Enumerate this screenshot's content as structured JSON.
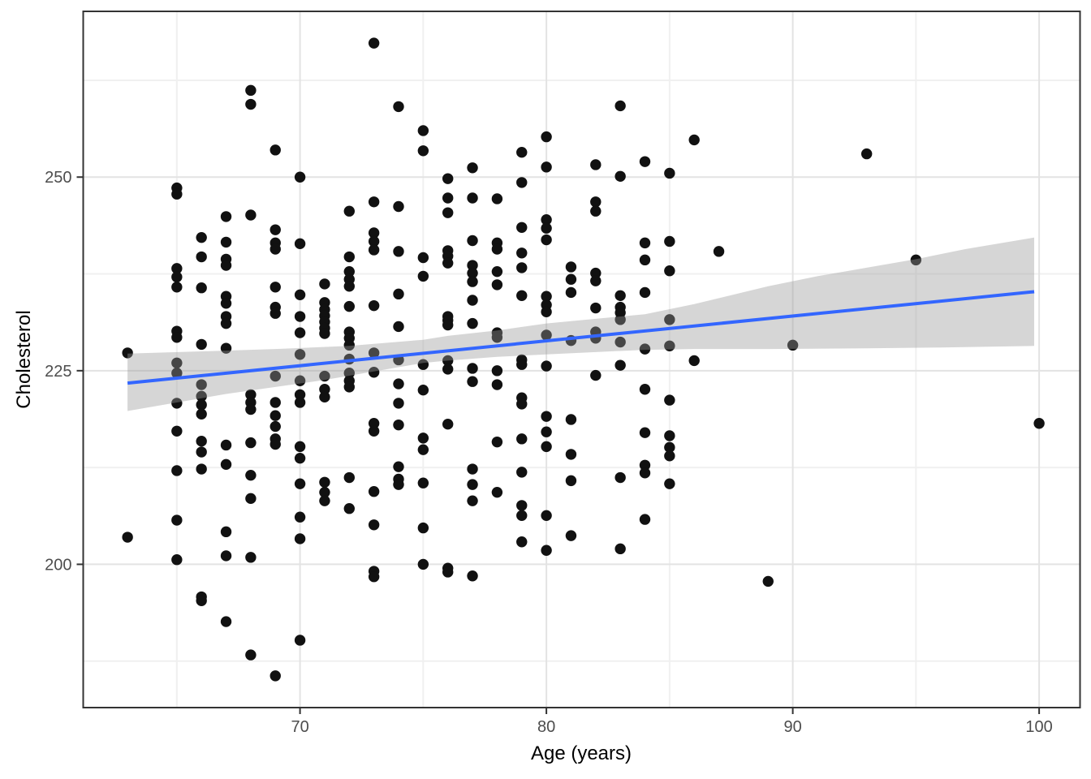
{
  "chart_data": {
    "type": "scatter",
    "title": "",
    "xlabel": "Age (years)",
    "ylabel": "Cholesterol",
    "xlim": [
      61.2,
      101.66
    ],
    "ylim": [
      181.5,
      271.4
    ],
    "x_ticks": [
      70,
      80,
      90,
      100
    ],
    "x_tick_labels": [
      "70",
      "80",
      "90",
      "100"
    ],
    "x_minor_ticks": [
      65,
      75,
      85,
      95
    ],
    "y_ticks": [
      200,
      225,
      250
    ],
    "y_tick_labels": [
      "200",
      "225",
      "250"
    ],
    "y_minor_ticks": [
      187.5,
      212.5,
      237.5,
      262.5
    ],
    "grid": true,
    "legend": "none",
    "style": {
      "panel_bg": "#ffffff",
      "panel_border": "#333333",
      "grid_major": "#e3e3e3",
      "grid_minor": "#f0f0f0",
      "tick_color": "#333333",
      "tick_label_color": "#4d4d4d",
      "tick_label_size": 20,
      "point_color": "#111111",
      "point_radius": 6.7,
      "line_color": "#3366FF",
      "line_width": 4,
      "ribbon_fill": "rgba(153,153,153,0.4)"
    },
    "smooth_line": {
      "x": [
        63,
        99.8
      ],
      "y": [
        223.4,
        235.2
      ]
    },
    "ribbon": {
      "upper": [
        [
          63,
          227.2
        ],
        [
          66,
          227.5
        ],
        [
          69,
          227.8
        ],
        [
          72,
          228.2
        ],
        [
          75,
          229.0
        ],
        [
          76,
          229.5
        ],
        [
          78,
          230.2
        ],
        [
          80,
          231.1
        ],
        [
          82,
          231.7
        ],
        [
          84,
          232.3
        ],
        [
          86,
          233.6
        ],
        [
          89,
          235.9
        ],
        [
          91,
          237.2
        ],
        [
          93,
          238.3
        ],
        [
          95,
          239.4
        ],
        [
          97,
          240.7
        ],
        [
          99.8,
          242.2
        ]
      ],
      "lower": [
        [
          63,
          219.8
        ],
        [
          65,
          220.9
        ],
        [
          67,
          222.0
        ],
        [
          69,
          222.9
        ],
        [
          71,
          223.8
        ],
        [
          73,
          224.9
        ],
        [
          75,
          226.0
        ],
        [
          76,
          226.3
        ],
        [
          78,
          226.8
        ],
        [
          80,
          227.1
        ],
        [
          82,
          227.4
        ],
        [
          84,
          227.7
        ],
        [
          86,
          227.8
        ],
        [
          89,
          227.8
        ],
        [
          93,
          227.9
        ],
        [
          96,
          228.0
        ],
        [
          99.8,
          228.2
        ]
      ]
    },
    "points": [
      [
        63,
        227.3
      ],
      [
        63,
        203.5
      ],
      [
        65,
        248.6
      ],
      [
        65,
        247.8
      ],
      [
        65,
        238.2
      ],
      [
        65,
        237.1
      ],
      [
        65,
        235.8
      ],
      [
        65,
        230.1
      ],
      [
        65,
        229.3
      ],
      [
        65,
        226.0
      ],
      [
        65,
        224.7
      ],
      [
        65,
        220.8
      ],
      [
        65,
        217.2
      ],
      [
        65,
        212.1
      ],
      [
        65,
        205.7
      ],
      [
        65,
        200.6
      ],
      [
        66,
        242.2
      ],
      [
        66,
        239.7
      ],
      [
        66,
        235.7
      ],
      [
        66,
        228.4
      ],
      [
        66,
        223.2
      ],
      [
        66,
        221.7
      ],
      [
        66,
        220.6
      ],
      [
        66,
        219.4
      ],
      [
        66,
        215.9
      ],
      [
        66,
        214.5
      ],
      [
        66,
        212.3
      ],
      [
        66,
        195.8
      ],
      [
        66,
        195.3
      ],
      [
        67,
        244.9
      ],
      [
        67,
        241.6
      ],
      [
        67,
        239.4
      ],
      [
        67,
        238.6
      ],
      [
        67,
        234.6
      ],
      [
        67,
        233.7
      ],
      [
        67,
        232.0
      ],
      [
        67,
        231.1
      ],
      [
        67,
        227.9
      ],
      [
        67,
        215.4
      ],
      [
        67,
        212.9
      ],
      [
        67,
        204.2
      ],
      [
        67,
        201.1
      ],
      [
        67,
        192.6
      ],
      [
        68,
        261.2
      ],
      [
        68,
        259.4
      ],
      [
        68,
        245.1
      ],
      [
        68,
        221.9
      ],
      [
        68,
        220.9
      ],
      [
        68,
        220.0
      ],
      [
        68,
        215.7
      ],
      [
        68,
        211.5
      ],
      [
        68,
        208.5
      ],
      [
        68,
        200.9
      ],
      [
        68,
        188.3
      ],
      [
        69,
        253.5
      ],
      [
        69,
        243.2
      ],
      [
        69,
        241.5
      ],
      [
        69,
        240.7
      ],
      [
        69,
        235.8
      ],
      [
        69,
        233.2
      ],
      [
        69,
        232.4
      ],
      [
        69,
        224.3
      ],
      [
        69,
        220.9
      ],
      [
        69,
        219.2
      ],
      [
        69,
        217.8
      ],
      [
        69,
        216.2
      ],
      [
        69,
        215.5
      ],
      [
        69,
        185.6
      ],
      [
        70,
        250.0
      ],
      [
        70,
        241.4
      ],
      [
        70,
        234.8
      ],
      [
        70,
        232.0
      ],
      [
        70,
        229.9
      ],
      [
        70,
        227.1
      ],
      [
        70,
        223.7
      ],
      [
        70,
        221.9
      ],
      [
        70,
        220.9
      ],
      [
        70,
        215.2
      ],
      [
        70,
        213.7
      ],
      [
        70,
        210.4
      ],
      [
        70,
        206.1
      ],
      [
        70,
        203.3
      ],
      [
        70,
        190.2
      ],
      [
        71,
        236.2
      ],
      [
        71,
        233.8
      ],
      [
        71,
        232.9
      ],
      [
        71,
        232.1
      ],
      [
        71,
        231.3
      ],
      [
        71,
        230.5
      ],
      [
        71,
        229.8
      ],
      [
        71,
        224.3
      ],
      [
        71,
        222.6
      ],
      [
        71,
        221.6
      ],
      [
        71,
        210.6
      ],
      [
        71,
        209.3
      ],
      [
        71,
        208.2
      ],
      [
        72,
        245.6
      ],
      [
        72,
        239.7
      ],
      [
        72,
        237.8
      ],
      [
        72,
        236.8
      ],
      [
        72,
        235.9
      ],
      [
        72,
        233.3
      ],
      [
        72,
        230.0
      ],
      [
        72,
        229.2
      ],
      [
        72,
        228.3
      ],
      [
        72,
        226.5
      ],
      [
        72,
        224.7
      ],
      [
        72,
        223.7
      ],
      [
        72,
        222.9
      ],
      [
        72,
        211.2
      ],
      [
        72,
        207.2
      ],
      [
        73,
        267.3
      ],
      [
        73,
        246.8
      ],
      [
        73,
        242.8
      ],
      [
        73,
        241.7
      ],
      [
        73,
        240.6
      ],
      [
        73,
        233.4
      ],
      [
        73,
        227.3
      ],
      [
        73,
        224.8
      ],
      [
        73,
        218.2
      ],
      [
        73,
        217.2
      ],
      [
        73,
        209.4
      ],
      [
        73,
        205.1
      ],
      [
        73,
        199.1
      ],
      [
        73,
        198.4
      ],
      [
        74,
        259.1
      ],
      [
        74,
        246.2
      ],
      [
        74,
        240.4
      ],
      [
        74,
        234.9
      ],
      [
        74,
        230.7
      ],
      [
        74,
        226.4
      ],
      [
        74,
        223.3
      ],
      [
        74,
        220.8
      ],
      [
        74,
        218.0
      ],
      [
        74,
        212.6
      ],
      [
        74,
        211.0
      ],
      [
        74,
        210.3
      ],
      [
        75,
        256.0
      ],
      [
        75,
        253.4
      ],
      [
        75,
        239.6
      ],
      [
        75,
        237.2
      ],
      [
        75,
        225.8
      ],
      [
        75,
        222.5
      ],
      [
        75,
        216.3
      ],
      [
        75,
        214.8
      ],
      [
        75,
        210.5
      ],
      [
        75,
        204.7
      ],
      [
        75,
        200.0
      ],
      [
        76,
        249.8
      ],
      [
        76,
        247.3
      ],
      [
        76,
        245.4
      ],
      [
        76,
        240.5
      ],
      [
        76,
        239.8
      ],
      [
        76,
        238.9
      ],
      [
        76,
        232.0
      ],
      [
        76,
        231.5
      ],
      [
        76,
        230.9
      ],
      [
        76,
        226.3
      ],
      [
        76,
        225.2
      ],
      [
        76,
        218.1
      ],
      [
        76,
        199.5
      ],
      [
        76,
        199.0
      ],
      [
        77,
        251.2
      ],
      [
        77,
        247.3
      ],
      [
        77,
        241.8
      ],
      [
        77,
        238.6
      ],
      [
        77,
        237.6
      ],
      [
        77,
        236.5
      ],
      [
        77,
        234.1
      ],
      [
        77,
        231.1
      ],
      [
        77,
        225.3
      ],
      [
        77,
        223.6
      ],
      [
        77,
        212.3
      ],
      [
        77,
        210.3
      ],
      [
        77,
        208.2
      ],
      [
        77,
        198.5
      ],
      [
        78,
        247.2
      ],
      [
        78,
        241.5
      ],
      [
        78,
        240.7
      ],
      [
        78,
        237.8
      ],
      [
        78,
        236.1
      ],
      [
        78,
        229.9
      ],
      [
        78,
        229.3
      ],
      [
        78,
        225.0
      ],
      [
        78,
        223.2
      ],
      [
        78,
        215.8
      ],
      [
        78,
        209.3
      ],
      [
        79,
        253.2
      ],
      [
        79,
        249.3
      ],
      [
        79,
        243.5
      ],
      [
        79,
        240.2
      ],
      [
        79,
        238.3
      ],
      [
        79,
        234.7
      ],
      [
        79,
        226.4
      ],
      [
        79,
        225.8
      ],
      [
        79,
        221.5
      ],
      [
        79,
        220.7
      ],
      [
        79,
        216.2
      ],
      [
        79,
        211.9
      ],
      [
        79,
        207.6
      ],
      [
        79,
        206.3
      ],
      [
        79,
        202.9
      ],
      [
        80,
        255.2
      ],
      [
        80,
        251.3
      ],
      [
        80,
        244.5
      ],
      [
        80,
        243.4
      ],
      [
        80,
        241.9
      ],
      [
        80,
        234.6
      ],
      [
        80,
        233.5
      ],
      [
        80,
        232.6
      ],
      [
        80,
        229.6
      ],
      [
        80,
        225.6
      ],
      [
        80,
        219.1
      ],
      [
        80,
        217.1
      ],
      [
        80,
        215.2
      ],
      [
        80,
        206.3
      ],
      [
        80,
        201.8
      ],
      [
        81,
        238.4
      ],
      [
        81,
        236.8
      ],
      [
        81,
        235.1
      ],
      [
        81,
        228.9
      ],
      [
        81,
        218.7
      ],
      [
        81,
        214.2
      ],
      [
        81,
        210.8
      ],
      [
        81,
        203.7
      ],
      [
        82,
        251.6
      ],
      [
        82,
        246.8
      ],
      [
        82,
        245.6
      ],
      [
        82,
        237.6
      ],
      [
        82,
        236.6
      ],
      [
        82,
        233.1
      ],
      [
        82,
        230.0
      ],
      [
        82,
        229.2
      ],
      [
        82,
        224.4
      ],
      [
        83,
        259.2
      ],
      [
        83,
        250.1
      ],
      [
        83,
        234.7
      ],
      [
        83,
        233.2
      ],
      [
        83,
        232.5
      ],
      [
        83,
        231.6
      ],
      [
        83,
        228.7
      ],
      [
        83,
        225.7
      ],
      [
        83,
        211.2
      ],
      [
        83,
        202.0
      ],
      [
        84,
        252.0
      ],
      [
        84,
        241.5
      ],
      [
        84,
        239.3
      ],
      [
        84,
        235.1
      ],
      [
        84,
        227.8
      ],
      [
        84,
        222.6
      ],
      [
        84,
        217.0
      ],
      [
        84,
        212.8
      ],
      [
        84,
        211.8
      ],
      [
        84,
        205.8
      ],
      [
        85,
        250.5
      ],
      [
        85,
        241.7
      ],
      [
        85,
        237.9
      ],
      [
        85,
        231.6
      ],
      [
        85,
        228.2
      ],
      [
        85,
        221.2
      ],
      [
        85,
        216.6
      ],
      [
        85,
        215.1
      ],
      [
        85,
        214.0
      ],
      [
        85,
        210.4
      ],
      [
        86,
        254.8
      ],
      [
        86,
        226.3
      ],
      [
        87,
        240.4
      ],
      [
        89,
        197.8
      ],
      [
        90,
        228.3
      ],
      [
        93,
        253.0
      ],
      [
        95,
        239.3
      ],
      [
        100,
        218.2
      ]
    ]
  }
}
